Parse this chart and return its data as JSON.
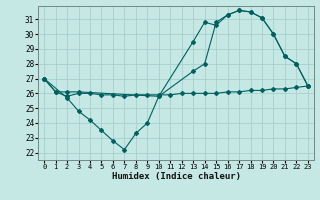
{
  "xlabel": "Humidex (Indice chaleur)",
  "bg_color": "#c5e8e5",
  "grid_color": "#a8d0cc",
  "line_color": "#006060",
  "xlim": [
    -0.5,
    23.5
  ],
  "ylim": [
    21.5,
    31.9
  ],
  "yticks": [
    22,
    23,
    24,
    25,
    26,
    27,
    28,
    29,
    30,
    31
  ],
  "xticks": [
    0,
    1,
    2,
    3,
    4,
    5,
    6,
    7,
    8,
    9,
    10,
    11,
    12,
    13,
    14,
    15,
    16,
    17,
    18,
    19,
    20,
    21,
    22,
    23
  ],
  "line1_x": [
    0,
    1,
    2,
    3,
    10,
    13,
    14,
    15,
    16,
    17,
    18,
    19,
    20,
    21,
    22,
    23
  ],
  "line1_y": [
    27.0,
    26.1,
    26.1,
    26.1,
    25.8,
    29.5,
    30.8,
    30.6,
    31.3,
    31.6,
    31.5,
    31.1,
    30.0,
    28.5,
    28.0,
    26.5
  ],
  "line2_x": [
    0,
    2,
    3,
    4,
    5,
    6,
    7,
    8,
    9,
    10,
    13,
    14,
    15,
    16,
    17,
    18,
    19,
    20,
    21,
    22,
    23
  ],
  "line2_y": [
    27.0,
    25.7,
    24.8,
    24.2,
    23.5,
    22.8,
    22.2,
    23.3,
    24.0,
    25.8,
    27.5,
    28.0,
    30.8,
    31.3,
    31.6,
    31.5,
    31.1,
    30.0,
    28.5,
    28.0,
    26.5
  ],
  "line3_x": [
    0,
    1,
    2,
    3,
    4,
    5,
    6,
    7,
    8,
    9,
    10,
    11,
    12,
    13,
    14,
    15,
    16,
    17,
    18,
    19,
    20,
    21,
    22,
    23
  ],
  "line3_y": [
    27.0,
    26.1,
    25.8,
    26.0,
    26.0,
    25.9,
    25.9,
    25.8,
    25.9,
    25.9,
    25.9,
    25.9,
    26.0,
    26.0,
    26.0,
    26.0,
    26.1,
    26.1,
    26.2,
    26.2,
    26.3,
    26.3,
    26.4,
    26.5
  ]
}
